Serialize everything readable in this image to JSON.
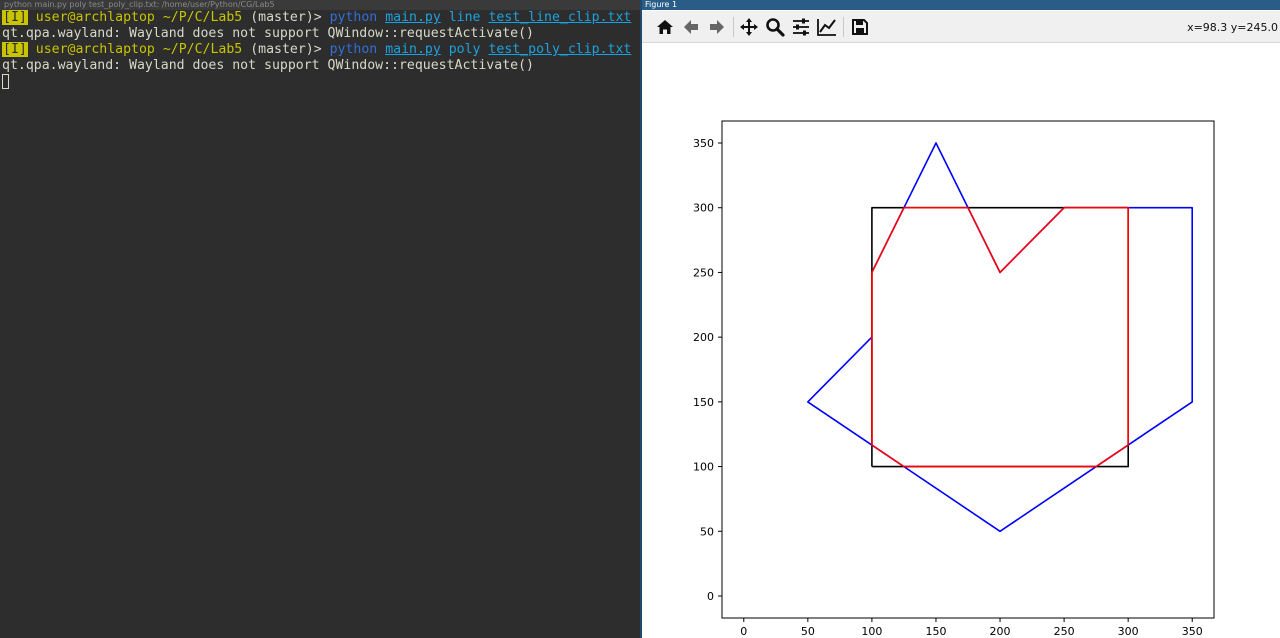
{
  "terminal": {
    "title": "python main.py poly test_poly_clip.txt: /home/user/Python/CG/Lab5",
    "prompt_tag": "[I]",
    "prompt_user": "user@archlaptop",
    "prompt_cwd": "~/P/C/Lab5",
    "prompt_branch": "(master)>",
    "lines": [
      {
        "cmd": "python",
        "script": "main.py",
        "mode": "line",
        "file": "test_line_clip.txt"
      },
      {
        "output": "qt.qpa.wayland: Wayland does not support QWindow::requestActivate()"
      },
      {
        "cmd": "python",
        "script": "main.py",
        "mode": "poly",
        "file": "test_poly_clip.txt"
      },
      {
        "output": "qt.qpa.wayland: Wayland does not support QWindow::requestActivate()"
      }
    ]
  },
  "figure": {
    "title": "Figure 1",
    "coords": "x=98.3 y=245.0",
    "toolbar": [
      "home-icon",
      "back-icon",
      "forward-icon",
      "pan-icon",
      "zoom-icon",
      "configure-subplots-icon",
      "edit-axis-icon",
      "save-icon"
    ]
  },
  "chart_data": {
    "type": "line",
    "xlim": [
      -17,
      367
    ],
    "ylim": [
      -17,
      367
    ],
    "xticks": [
      0,
      50,
      100,
      150,
      200,
      250,
      300,
      350
    ],
    "yticks": [
      0,
      50,
      100,
      150,
      200,
      250,
      300,
      350
    ],
    "grid": false,
    "series": [
      {
        "color": "#000000",
        "points": [
          [
            100,
            100
          ],
          [
            300,
            100
          ],
          [
            300,
            300
          ],
          [
            100,
            300
          ],
          [
            100,
            100
          ]
        ]
      },
      {
        "color": "#0000ff",
        "points": [
          [
            100,
            200
          ],
          [
            50,
            150
          ],
          [
            200,
            50
          ],
          [
            350,
            150
          ],
          [
            350,
            300
          ],
          [
            250,
            300
          ],
          [
            200,
            250
          ],
          [
            150,
            350
          ],
          [
            100,
            250
          ]
        ]
      },
      {
        "color": "#ff0000",
        "points": [
          [
            100,
            250
          ],
          [
            100,
            116.67
          ],
          [
            125,
            100
          ],
          [
            275,
            100
          ],
          [
            300,
            116.67
          ],
          [
            300,
            300
          ],
          [
            250,
            300
          ],
          [
            200,
            250
          ],
          [
            175,
            300
          ],
          [
            125,
            300
          ],
          [
            100,
            250
          ]
        ]
      }
    ]
  }
}
